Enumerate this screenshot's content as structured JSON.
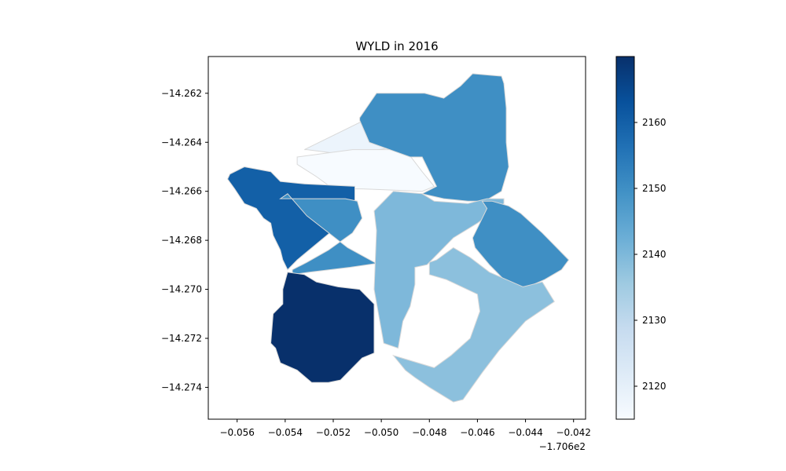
{
  "chart_data": {
    "type": "choropleth",
    "title": "WYLD in 2016",
    "x_ticks": [
      "−0.056",
      "−0.054",
      "−0.052",
      "−0.050",
      "−0.048",
      "−0.046",
      "−0.044",
      "−0.042"
    ],
    "x_offset_label": "−1.706e2",
    "y_ticks": [
      "−14.262",
      "−14.264",
      "−14.266",
      "−14.268",
      "−14.270",
      "−14.272",
      "−14.274"
    ],
    "xlim": [
      -170.6572,
      -170.6415
    ],
    "ylim": [
      -14.2753,
      -14.2605
    ],
    "colormap": "Blues",
    "color_range": [
      2115,
      2170
    ],
    "colorbar_ticks": [
      "2120",
      "2130",
      "2140",
      "2150",
      "2160"
    ],
    "colorbar_tick_values": [
      2120,
      2130,
      2140,
      2150,
      2160
    ],
    "regions": [
      {
        "value": 2118,
        "polygon": [
          [
            -170.6532,
            -14.2643
          ],
          [
            -170.6505,
            -14.263
          ],
          [
            -170.6502,
            -14.263
          ],
          [
            -170.6493,
            -14.2623
          ],
          [
            -170.6495,
            -14.2642
          ],
          [
            -170.6513,
            -14.2645
          ],
          [
            -170.6515,
            -14.2645
          ],
          [
            -170.6531,
            -14.2643
          ]
        ]
      },
      {
        "value": 2115,
        "polygon": [
          [
            -170.6535,
            -14.2646
          ],
          [
            -170.6512,
            -14.2643
          ],
          [
            -170.649,
            -14.2643
          ],
          [
            -170.6483,
            -14.2652
          ],
          [
            -170.6478,
            -14.2658
          ],
          [
            -170.6483,
            -14.266
          ],
          [
            -170.6508,
            -14.2659
          ],
          [
            -170.652,
            -14.2659
          ],
          [
            -170.6527,
            -14.2654
          ],
          [
            -170.6535,
            -14.2649
          ]
        ]
      },
      {
        "value": 2150,
        "polygon": [
          [
            -170.6509,
            -14.263
          ],
          [
            -170.6502,
            -14.262
          ],
          [
            -170.6495,
            -14.262
          ],
          [
            -170.6482,
            -14.262
          ],
          [
            -170.6474,
            -14.2622
          ],
          [
            -170.6467,
            -14.2617
          ],
          [
            -170.6462,
            -14.2612
          ],
          [
            -170.645,
            -14.2613
          ],
          [
            -170.6449,
            -14.2616
          ],
          [
            -170.6448,
            -14.2626
          ],
          [
            -170.6448,
            -14.264
          ],
          [
            -170.6447,
            -14.265
          ],
          [
            -170.645,
            -14.266
          ],
          [
            -170.6457,
            -14.2664
          ],
          [
            -170.6464,
            -14.2664
          ],
          [
            -170.6474,
            -14.2663
          ],
          [
            -170.6483,
            -14.2661
          ],
          [
            -170.6477,
            -14.2658
          ],
          [
            -170.6483,
            -14.2646
          ],
          [
            -170.6488,
            -14.2646
          ],
          [
            -170.6505,
            -14.264
          ],
          [
            -170.6509,
            -14.2631
          ]
        ]
      },
      {
        "value": 2160,
        "polygon": [
          [
            -170.6564,
            -14.2655
          ],
          [
            -170.6561,
            -14.2659
          ],
          [
            -170.6557,
            -14.2665
          ],
          [
            -170.6552,
            -14.2667
          ],
          [
            -170.6549,
            -14.2671
          ],
          [
            -170.6546,
            -14.2673
          ],
          [
            -170.6545,
            -14.2678
          ],
          [
            -170.6542,
            -14.2684
          ],
          [
            -170.6541,
            -14.2688
          ],
          [
            -170.6539,
            -14.2692
          ],
          [
            -170.6535,
            -14.2688
          ],
          [
            -170.6519,
            -14.2675
          ],
          [
            -170.6511,
            -14.2665
          ],
          [
            -170.6511,
            -14.2658
          ],
          [
            -170.6532,
            -14.2657
          ],
          [
            -170.6542,
            -14.2656
          ],
          [
            -170.6546,
            -14.2652
          ],
          [
            -170.6557,
            -14.265
          ],
          [
            -170.6563,
            -14.2653
          ]
        ]
      },
      {
        "value": 2150,
        "polygon": [
          [
            -170.6537,
            -14.2692
          ],
          [
            -170.6531,
            -14.2689
          ],
          [
            -170.6522,
            -14.2684
          ],
          [
            -170.6512,
            -14.2677
          ],
          [
            -170.6508,
            -14.2671
          ],
          [
            -170.651,
            -14.2664
          ],
          [
            -170.6515,
            -14.2663
          ],
          [
            -170.6525,
            -14.2663
          ],
          [
            -170.6532,
            -14.2663
          ],
          [
            -170.6537,
            -14.2663
          ],
          [
            -170.6542,
            -14.2663
          ],
          [
            -170.6539,
            -14.2661
          ],
          [
            -170.6531,
            -14.267
          ],
          [
            -170.6514,
            -14.2683
          ],
          [
            -170.6501,
            -14.269
          ],
          [
            -170.6501,
            -14.2678
          ],
          [
            -170.6493,
            -14.268
          ],
          [
            -170.648,
            -14.2684
          ],
          [
            -170.6481,
            -14.2689
          ],
          [
            -170.6499,
            -14.2689
          ],
          [
            -170.6513,
            -14.2691
          ],
          [
            -170.653,
            -14.2693
          ],
          [
            -170.6537,
            -14.2694
          ]
        ]
      },
      {
        "value": 2170,
        "polygon": [
          [
            -170.6539,
            -14.2693
          ],
          [
            -170.6532,
            -14.2694
          ],
          [
            -170.6527,
            -14.2697
          ],
          [
            -170.6518,
            -14.2699
          ],
          [
            -170.6509,
            -14.27
          ],
          [
            -170.6503,
            -14.2706
          ],
          [
            -170.6503,
            -14.2726
          ],
          [
            -170.6508,
            -14.2728
          ],
          [
            -170.6513,
            -14.2733
          ],
          [
            -170.6517,
            -14.2737
          ],
          [
            -170.6522,
            -14.2738
          ],
          [
            -170.6529,
            -14.2738
          ],
          [
            -170.6535,
            -14.2733
          ],
          [
            -170.6542,
            -14.273
          ],
          [
            -170.6544,
            -14.2724
          ],
          [
            -170.6546,
            -14.2722
          ],
          [
            -170.6545,
            -14.271
          ],
          [
            -170.6541,
            -14.2706
          ],
          [
            -170.6541,
            -14.27
          ]
        ]
      },
      {
        "value": 2140,
        "polygon": [
          [
            -170.6481,
            -14.269
          ],
          [
            -170.647,
            -14.2679
          ],
          [
            -170.646,
            -14.2673
          ],
          [
            -170.6449,
            -14.2665
          ],
          [
            -170.6449,
            -14.2663
          ],
          [
            -170.6456,
            -14.2663
          ],
          [
            -170.6464,
            -14.2665
          ],
          [
            -170.6478,
            -14.2664
          ],
          [
            -170.6483,
            -14.2661
          ],
          [
            -170.6495,
            -14.266
          ],
          [
            -170.6503,
            -14.2668
          ],
          [
            -170.6502,
            -14.2676
          ],
          [
            -170.6503,
            -14.27
          ],
          [
            -170.6499,
            -14.2722
          ],
          [
            -170.6493,
            -14.2724
          ],
          [
            -170.6491,
            -14.2713
          ],
          [
            -170.6488,
            -14.2707
          ],
          [
            -170.6486,
            -14.2698
          ],
          [
            -170.6486,
            -14.2691
          ]
        ]
      },
      {
        "value": 2150,
        "polygon": [
          [
            -170.6458,
            -14.2664
          ],
          [
            -170.6456,
            -14.2667
          ],
          [
            -170.6462,
            -14.2679
          ],
          [
            -170.6461,
            -14.2683
          ],
          [
            -170.6455,
            -14.269
          ],
          [
            -170.6446,
            -14.2699
          ],
          [
            -170.6439,
            -14.2699
          ],
          [
            -170.6432,
            -14.2696
          ],
          [
            -170.6425,
            -14.2692
          ],
          [
            -170.6422,
            -14.2688
          ],
          [
            -170.6428,
            -14.2682
          ],
          [
            -170.6433,
            -14.2677
          ],
          [
            -170.6442,
            -14.2669
          ],
          [
            -170.6447,
            -14.2666
          ],
          [
            -170.6454,
            -14.2664
          ]
        ]
      },
      {
        "value": 2138,
        "polygon": [
          [
            -170.6478,
            -14.2732
          ],
          [
            -170.6471,
            -14.2727
          ],
          [
            -170.6463,
            -14.272
          ],
          [
            -170.6459,
            -14.2709
          ],
          [
            -170.646,
            -14.2702
          ],
          [
            -170.6473,
            -14.2696
          ],
          [
            -170.648,
            -14.2694
          ],
          [
            -170.648,
            -14.2689
          ],
          [
            -170.6477,
            -14.2688
          ],
          [
            -170.647,
            -14.2683
          ],
          [
            -170.6463,
            -14.2687
          ],
          [
            -170.6455,
            -14.2693
          ],
          [
            -170.6441,
            -14.2699
          ],
          [
            -170.6433,
            -14.2697
          ],
          [
            -170.6428,
            -14.2705
          ],
          [
            -170.644,
            -14.2713
          ],
          [
            -170.6451,
            -14.2725
          ],
          [
            -170.6458,
            -14.2734
          ],
          [
            -170.6466,
            -14.2745
          ],
          [
            -170.647,
            -14.2746
          ],
          [
            -170.648,
            -14.274
          ],
          [
            -170.6486,
            -14.2736
          ],
          [
            -170.649,
            -14.2733
          ],
          [
            -170.6495,
            -14.2727
          ]
        ]
      }
    ]
  }
}
